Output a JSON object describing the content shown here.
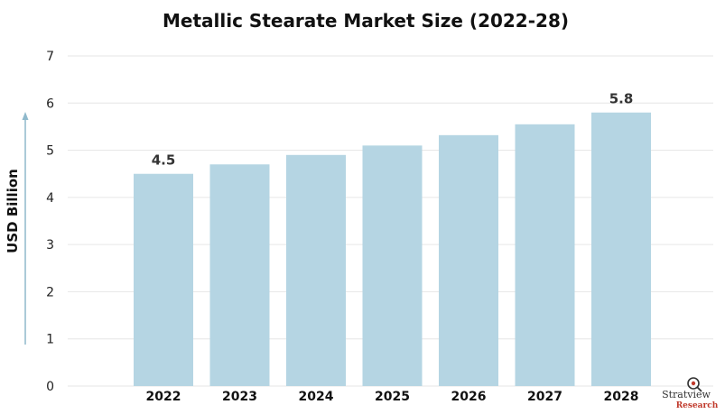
{
  "chart_data": {
    "type": "bar",
    "title": "Metallic Stearate Market Size (2022-28)",
    "xlabel": "",
    "ylabel": "USD Billion",
    "categories": [
      "2022",
      "2023",
      "2024",
      "2025",
      "2026",
      "2027",
      "2028"
    ],
    "values": [
      4.5,
      4.7,
      4.9,
      5.1,
      5.32,
      5.55,
      5.8
    ],
    "data_labels": [
      {
        "category": "2022",
        "text": "4.5"
      },
      {
        "category": "2028",
        "text": "5.8"
      }
    ],
    "ylim": [
      0,
      7
    ],
    "yticks": [
      "0",
      "1",
      "2",
      "3",
      "4",
      "5",
      "6",
      "7"
    ],
    "grid": true,
    "legend": "none",
    "bar_color": "#b5d5e3",
    "grid_color": "#e6e6e6",
    "axis_arrow_color": "#8fb9cc"
  },
  "branding": {
    "logo_text": "Stratview",
    "logo_sub": "Research"
  }
}
